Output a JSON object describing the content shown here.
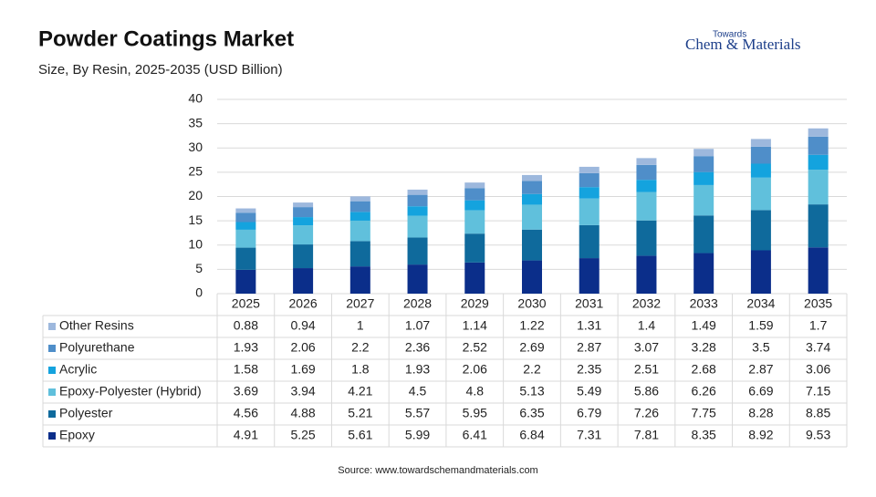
{
  "chart_data": {
    "type": "stacked-bar-table",
    "title": "Powder Coatings Market",
    "subtitle": "Size, By Resin, 2025-2035 (USD Billion)",
    "source": "Source: www.towardschemandmaterials.com",
    "logo": {
      "top": "Towards",
      "main": "Chem & Materials"
    },
    "categories": [
      "2025",
      "2026",
      "2027",
      "2028",
      "2029",
      "2030",
      "2031",
      "2032",
      "2033",
      "2034",
      "2035"
    ],
    "series": [
      {
        "name": "Other Resins",
        "color": "#9db8dd",
        "values": [
          0.88,
          0.94,
          1,
          1.07,
          1.14,
          1.22,
          1.31,
          1.4,
          1.49,
          1.59,
          1.7
        ]
      },
      {
        "name": "Polyurethane",
        "color": "#4f8ec9",
        "values": [
          1.93,
          2.06,
          2.2,
          2.36,
          2.52,
          2.69,
          2.87,
          3.07,
          3.28,
          3.5,
          3.74
        ]
      },
      {
        "name": "Acrylic",
        "color": "#14a3de",
        "values": [
          1.58,
          1.69,
          1.8,
          1.93,
          2.06,
          2.2,
          2.35,
          2.51,
          2.68,
          2.87,
          3.06
        ]
      },
      {
        "name": "Epoxy-Polyester (Hybrid)",
        "color": "#60c0dc",
        "values": [
          3.69,
          3.94,
          4.21,
          4.5,
          4.8,
          5.13,
          5.49,
          5.86,
          6.26,
          6.69,
          7.15
        ]
      },
      {
        "name": "Polyester",
        "color": "#0f6a9c",
        "values": [
          4.56,
          4.88,
          5.21,
          5.57,
          5.95,
          6.35,
          6.79,
          7.26,
          7.75,
          8.28,
          8.85
        ]
      },
      {
        "name": "Epoxy",
        "color": "#0b2e8a",
        "values": [
          4.91,
          5.25,
          5.61,
          5.99,
          6.41,
          6.84,
          7.31,
          7.81,
          8.35,
          8.92,
          9.53
        ]
      }
    ],
    "ylim": [
      0,
      40
    ],
    "yticks": [
      0,
      5,
      10,
      15,
      20,
      25,
      30,
      35,
      40
    ],
    "grid": true
  }
}
